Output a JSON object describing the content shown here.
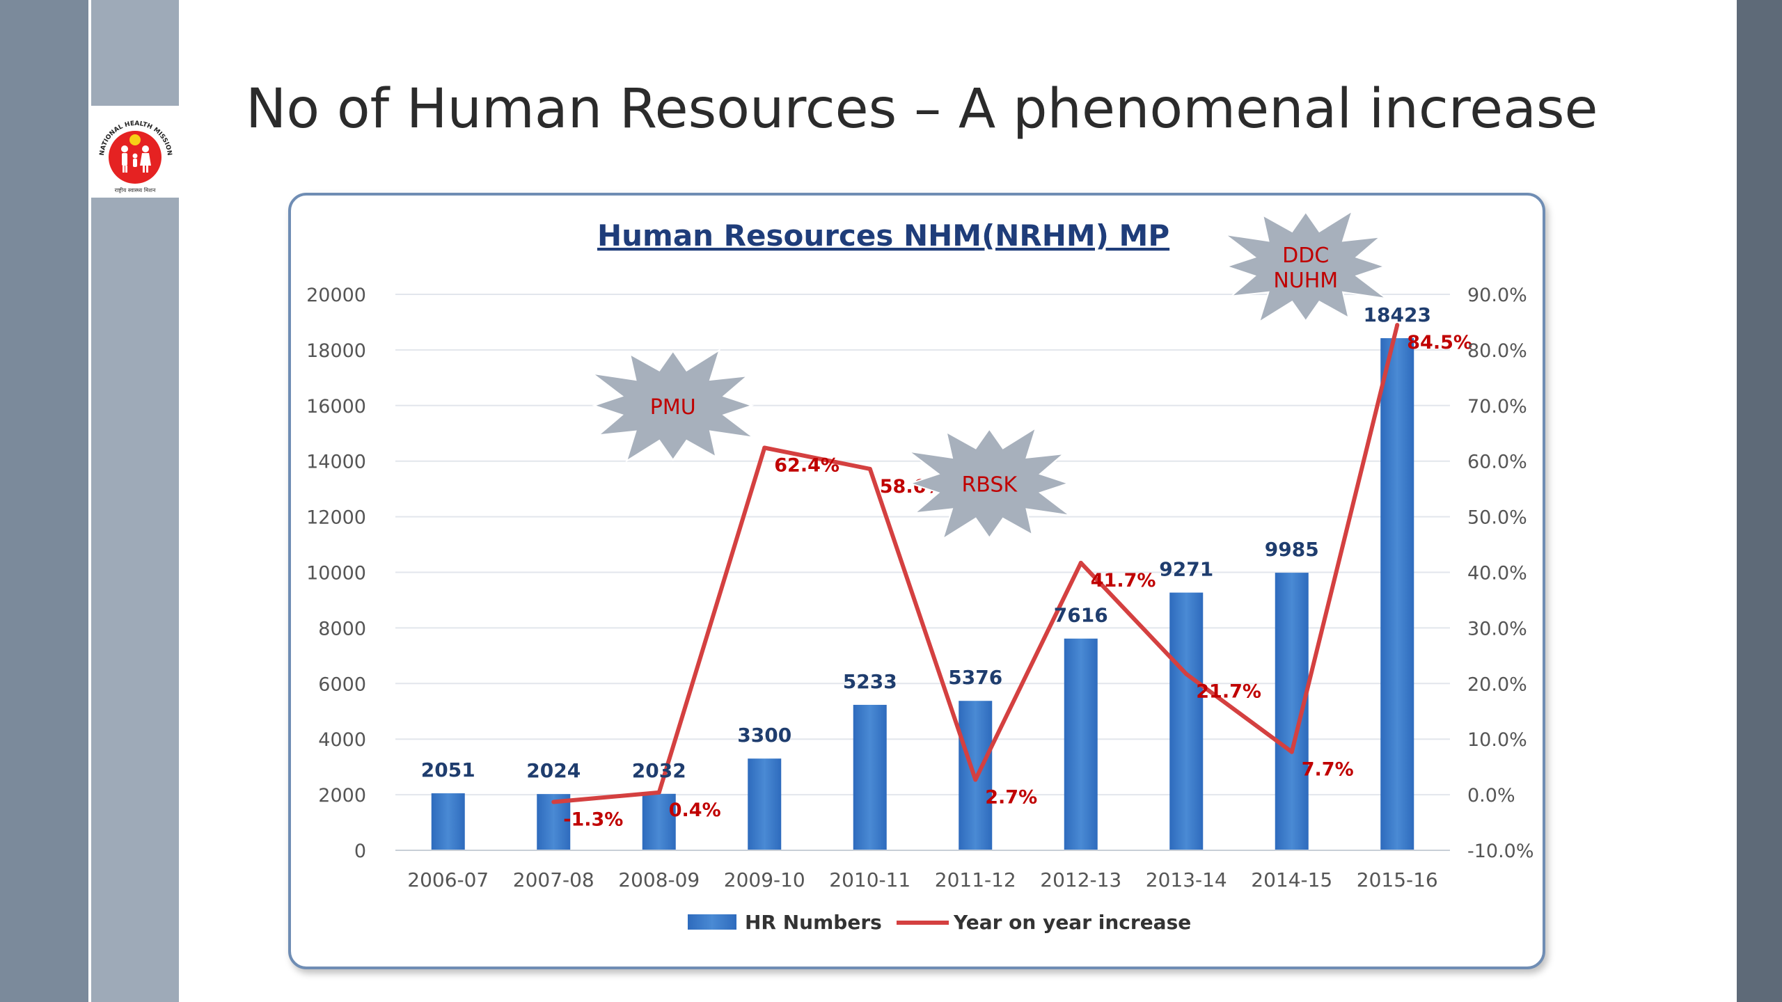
{
  "slide": {
    "title": "No of Human Resources –  A phenomenal increase"
  },
  "logo": {
    "icon": "national-health-mission-logo",
    "arc_text": "NATIONAL HEALTH MISSION",
    "sub_text": "राष्ट्रीय स्वास्थ्य मिशन"
  },
  "colors": {
    "bar": "#2e6bbd",
    "bar_light": "#4a8ad4",
    "line": "#d44040",
    "bar_label": "#1f3d6e",
    "line_label": "#c00000",
    "burst_fill": "#a7b0bc",
    "burst_text": "#c00000",
    "title_blue": "#1f3d7a"
  },
  "chart_data": {
    "type": "bar",
    "title": "Human Resources NHM(NRHM) MP",
    "categories": [
      "2006-07",
      "2007-08",
      "2008-09",
      "2009-10",
      "2010-11",
      "2011-12",
      "2012-13",
      "2013-14",
      "2014-15",
      "2015-16"
    ],
    "series": [
      {
        "name": "HR Numbers",
        "type": "bar",
        "axis": "left",
        "values": [
          2051,
          2024,
          2032,
          3300,
          5233,
          5376,
          7616,
          9271,
          9985,
          18423
        ],
        "labels": [
          "2051",
          "2024",
          "2032",
          "3300",
          "5233",
          "5376",
          "7616",
          "9271",
          "9985",
          "18423"
        ]
      },
      {
        "name": "Year on year increase",
        "type": "line",
        "axis": "right",
        "values": [
          null,
          -1.3,
          0.4,
          62.4,
          58.6,
          2.7,
          41.7,
          21.7,
          7.7,
          84.5
        ],
        "labels": [
          "",
          "-1.3%",
          "0.4%",
          "62.4%",
          "58.6%",
          "2.7%",
          "41.7%",
          "21.7%",
          "7.7%",
          "84.5%"
        ]
      }
    ],
    "ylim": [
      0,
      20000
    ],
    "yticks": [
      "0",
      "2000",
      "4000",
      "6000",
      "8000",
      "10000",
      "12000",
      "14000",
      "16000",
      "18000",
      "20000"
    ],
    "y2lim": [
      -10,
      90
    ],
    "y2ticks": [
      "-10.0%",
      "0.0%",
      "10.0%",
      "20.0%",
      "30.0%",
      "40.0%",
      "50.0%",
      "60.0%",
      "70.0%",
      "80.0%",
      "90.0%"
    ],
    "grid": true,
    "legend": "bottom",
    "annotations": [
      {
        "lines": [
          "PMU"
        ],
        "category": "2008-09",
        "y2": 70
      },
      {
        "lines": [
          "RBSK"
        ],
        "category": "2011-12",
        "y2": 56
      },
      {
        "lines": [
          "DDC",
          "NUHM"
        ],
        "category": "2014-15",
        "y2": 95
      }
    ]
  }
}
